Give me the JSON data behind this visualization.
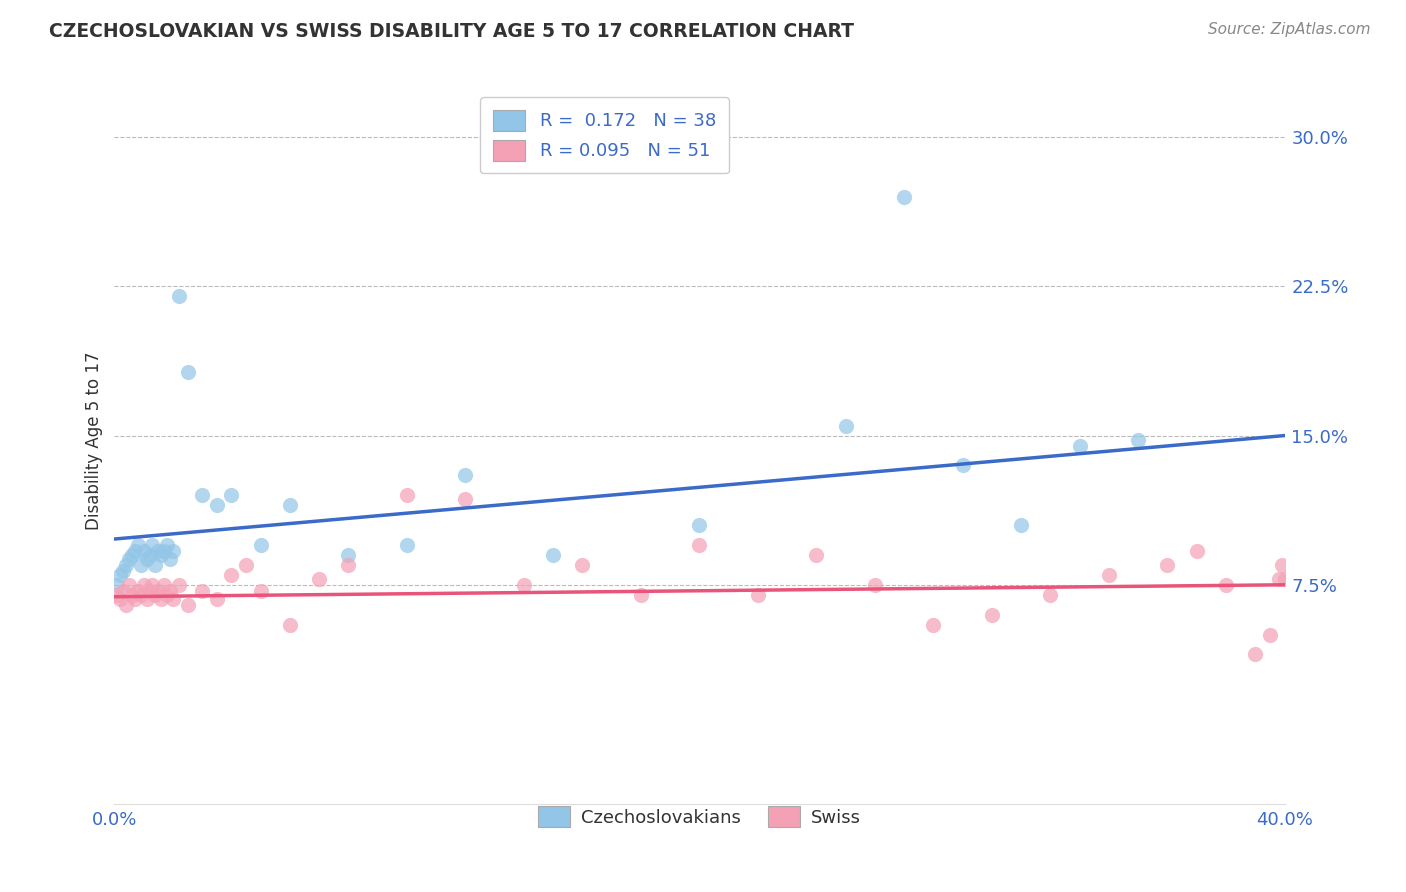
{
  "title": "CZECHOSLOVAKIAN VS SWISS DISABILITY AGE 5 TO 17 CORRELATION CHART",
  "source": "Source: ZipAtlas.com",
  "ylabel": "Disability Age 5 to 17",
  "xlim": [
    0.0,
    0.4
  ],
  "ylim": [
    -0.035,
    0.33
  ],
  "yticks": [
    0.075,
    0.15,
    0.225,
    0.3
  ],
  "ytick_labels": [
    "7.5%",
    "15.0%",
    "22.5%",
    "30.0%"
  ],
  "color_czech": "#92C5E8",
  "color_swiss": "#F4A0B5",
  "line_color_czech": "#3B6BC8",
  "line_color_swiss": "#E8547A",
  "background_color": "#FFFFFF",
  "grid_color": "#BBBBBB",
  "czech_x": [
    0.001,
    0.002,
    0.003,
    0.004,
    0.005,
    0.006,
    0.007,
    0.008,
    0.009,
    0.01,
    0.011,
    0.012,
    0.013,
    0.014,
    0.015,
    0.016,
    0.017,
    0.018,
    0.019,
    0.02,
    0.022,
    0.025,
    0.03,
    0.035,
    0.04,
    0.05,
    0.06,
    0.08,
    0.1,
    0.12,
    0.15,
    0.2,
    0.25,
    0.27,
    0.29,
    0.31,
    0.33,
    0.35
  ],
  "czech_y": [
    0.075,
    0.08,
    0.082,
    0.085,
    0.088,
    0.09,
    0.092,
    0.095,
    0.085,
    0.092,
    0.088,
    0.09,
    0.095,
    0.085,
    0.092,
    0.09,
    0.092,
    0.095,
    0.088,
    0.092,
    0.22,
    0.182,
    0.12,
    0.115,
    0.12,
    0.095,
    0.115,
    0.09,
    0.095,
    0.13,
    0.09,
    0.105,
    0.155,
    0.27,
    0.135,
    0.105,
    0.145,
    0.148
  ],
  "swiss_x": [
    0.001,
    0.002,
    0.003,
    0.004,
    0.005,
    0.006,
    0.007,
    0.008,
    0.009,
    0.01,
    0.011,
    0.012,
    0.013,
    0.014,
    0.015,
    0.016,
    0.017,
    0.018,
    0.019,
    0.02,
    0.022,
    0.025,
    0.03,
    0.035,
    0.04,
    0.045,
    0.05,
    0.06,
    0.07,
    0.08,
    0.1,
    0.12,
    0.14,
    0.16,
    0.18,
    0.2,
    0.22,
    0.24,
    0.26,
    0.28,
    0.3,
    0.32,
    0.34,
    0.36,
    0.37,
    0.38,
    0.39,
    0.395,
    0.398,
    0.399,
    0.4
  ],
  "swiss_y": [
    0.07,
    0.068,
    0.072,
    0.065,
    0.075,
    0.07,
    0.068,
    0.072,
    0.07,
    0.075,
    0.068,
    0.072,
    0.075,
    0.07,
    0.072,
    0.068,
    0.075,
    0.07,
    0.072,
    0.068,
    0.075,
    0.065,
    0.072,
    0.068,
    0.08,
    0.085,
    0.072,
    0.055,
    0.078,
    0.085,
    0.12,
    0.118,
    0.075,
    0.085,
    0.07,
    0.095,
    0.07,
    0.09,
    0.075,
    0.055,
    0.06,
    0.07,
    0.08,
    0.085,
    0.092,
    0.075,
    0.04,
    0.05,
    0.078,
    0.085,
    0.078
  ]
}
